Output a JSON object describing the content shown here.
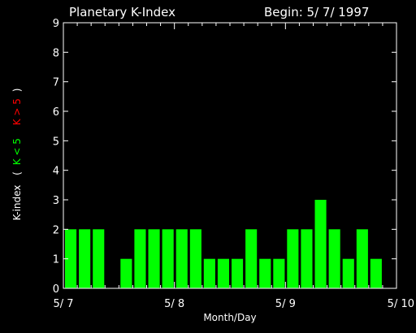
{
  "chart_data": {
    "type": "bar",
    "title": "Planetary K-Index",
    "subtitle": "Begin: 5/ 7/ 1997",
    "xlabel": "Month/Day",
    "ylabel": {
      "prefix": "K-index",
      "open": "(",
      "green": "K < 5",
      "red": "K > 5",
      "close": ")"
    },
    "ylim": [
      0,
      9
    ],
    "yticks": [
      "0",
      "1",
      "2",
      "3",
      "4",
      "5",
      "6",
      "7",
      "8",
      "9"
    ],
    "xticks": [
      "5/ 7",
      "5/ 8",
      "5/ 9",
      "5/ 10"
    ],
    "x_range_days": [
      0,
      3
    ],
    "interval_hours": 3,
    "values": [
      2,
      2,
      2,
      0,
      1,
      2,
      2,
      2,
      2,
      2,
      1,
      1,
      1,
      2,
      1,
      1,
      2,
      2,
      3,
      2,
      1,
      2,
      1,
      0
    ],
    "colors": {
      "low": "#00ff00",
      "high": "#ff0000",
      "axis": "#ffffff",
      "background": "#000000"
    }
  }
}
